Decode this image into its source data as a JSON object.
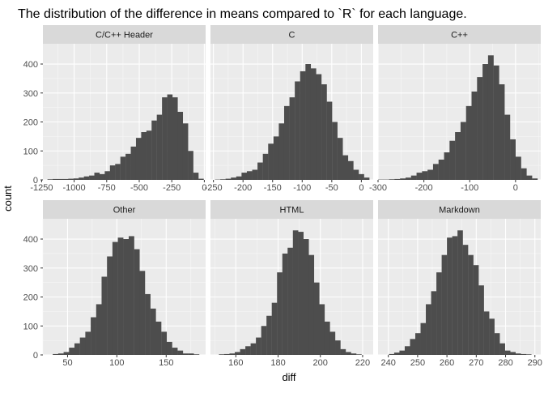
{
  "title": "The distribution of the difference in means compared to `R` for each language.",
  "xlabel": "diff",
  "ylabel": "count",
  "y_ticks": [
    0,
    100,
    200,
    300,
    400
  ],
  "colors": {
    "bar": "#4d4d4d",
    "panel_bg": "#ebebeb",
    "strip_bg": "#d9d9d9",
    "grid_major": "#ffffff",
    "text": "#000000",
    "tick_text": "#4d4d4d"
  },
  "chart_data": [
    {
      "type": "bar",
      "facet": "C/C++ Header",
      "xlim": [
        -1240,
        10
      ],
      "ylim": [
        0,
        470
      ],
      "x_ticks": [
        -1250,
        -1000,
        -750,
        -500,
        -250,
        0
      ],
      "x_tick_labels": [
        "-1250",
        "-1000",
        "-750",
        "-500",
        "-250",
        "0"
      ],
      "bin_width": 40,
      "x": [
        -1185,
        -1145,
        -1105,
        -1065,
        -1025,
        -985,
        -945,
        -905,
        -865,
        -825,
        -785,
        -745,
        -705,
        -665,
        -625,
        -585,
        -545,
        -505,
        -465,
        -425,
        -385,
        -345,
        -305,
        -265,
        -225,
        -185,
        -145,
        -105,
        -65,
        -25
      ],
      "values": [
        2,
        3,
        3,
        3,
        4,
        5,
        8,
        12,
        15,
        25,
        20,
        30,
        50,
        55,
        80,
        90,
        115,
        145,
        165,
        170,
        205,
        225,
        285,
        295,
        285,
        235,
        195,
        100,
        25,
        4
      ]
    },
    {
      "type": "bar",
      "facet": "C",
      "xlim": [
        -255,
        20
      ],
      "ylim": [
        0,
        470
      ],
      "x_ticks": [
        -250,
        -200,
        -150,
        -100,
        -50,
        0
      ],
      "x_tick_labels": [
        "-250",
        "-200",
        "-150",
        "-100",
        "-50",
        "0"
      ],
      "bin_width": 9,
      "x": [
        -243,
        -234,
        -225,
        -216,
        -207,
        -198,
        -189,
        -180,
        -171,
        -162,
        -153,
        -144,
        -135,
        -126,
        -117,
        -108,
        -99,
        -90,
        -81,
        -72,
        -63,
        -54,
        -45,
        -36,
        -27,
        -18,
        -9,
        0,
        9
      ],
      "values": [
        1,
        2,
        4,
        8,
        12,
        25,
        30,
        35,
        60,
        90,
        125,
        150,
        195,
        255,
        285,
        340,
        375,
        400,
        385,
        365,
        330,
        270,
        200,
        145,
        85,
        65,
        35,
        20,
        8
      ]
    },
    {
      "type": "bar",
      "facet": "C++",
      "xlim": [
        -300,
        55
      ],
      "ylim": [
        0,
        470
      ],
      "x_ticks": [
        -300,
        -200,
        -100,
        0
      ],
      "x_tick_labels": [
        "-300",
        "-200",
        "-100",
        "0"
      ],
      "bin_width": 12,
      "x": [
        -294,
        -282,
        -270,
        -258,
        -246,
        -234,
        -222,
        -210,
        -198,
        -186,
        -174,
        -162,
        -150,
        -138,
        -126,
        -114,
        -102,
        -90,
        -78,
        -66,
        -54,
        -42,
        -30,
        -18,
        -6,
        6,
        18,
        30,
        42
      ],
      "values": [
        1,
        1,
        2,
        3,
        5,
        8,
        15,
        25,
        30,
        35,
        55,
        70,
        95,
        135,
        165,
        200,
        255,
        305,
        355,
        400,
        430,
        395,
        330,
        225,
        140,
        80,
        40,
        15,
        5
      ]
    },
    {
      "type": "bar",
      "facet": "Other",
      "xlim": [
        25,
        190
      ],
      "ylim": [
        0,
        470
      ],
      "x_ticks": [
        50,
        100,
        150
      ],
      "x_tick_labels": [
        "50",
        "100",
        "150"
      ],
      "bin_width": 5.5,
      "x": [
        37.75,
        43.25,
        48.75,
        54.25,
        59.75,
        65.25,
        70.75,
        76.25,
        81.75,
        87.25,
        92.75,
        98.25,
        103.75,
        109.25,
        114.75,
        120.25,
        125.75,
        131.25,
        136.75,
        142.25,
        147.75,
        153.25,
        158.75,
        164.25,
        169.75,
        175.25,
        180.75
      ],
      "values": [
        3,
        5,
        10,
        25,
        40,
        60,
        80,
        130,
        175,
        270,
        340,
        390,
        405,
        400,
        410,
        365,
        290,
        210,
        160,
        115,
        80,
        45,
        25,
        15,
        5,
        5,
        2
      ]
    },
    {
      "type": "bar",
      "facet": "HTML",
      "xlim": [
        148,
        225
      ],
      "ylim": [
        0,
        470
      ],
      "x_ticks": [
        160,
        180,
        200,
        220
      ],
      "x_tick_labels": [
        "160",
        "180",
        "200",
        "220"
      ],
      "bin_width": 2.5,
      "x": [
        153.25,
        155.75,
        158.25,
        160.75,
        163.25,
        165.75,
        168.25,
        170.75,
        173.25,
        175.75,
        178.25,
        180.75,
        183.25,
        185.75,
        188.25,
        190.75,
        193.25,
        195.75,
        198.25,
        200.75,
        203.25,
        205.75,
        208.25,
        210.75,
        213.25,
        215.75,
        218.25
      ],
      "values": [
        2,
        3,
        5,
        10,
        20,
        30,
        40,
        60,
        100,
        135,
        180,
        285,
        350,
        370,
        430,
        425,
        400,
        345,
        250,
        175,
        115,
        80,
        50,
        20,
        10,
        5,
        2
      ]
    },
    {
      "type": "bar",
      "facet": "Markdown",
      "xlim": [
        236.5,
        292
      ],
      "ylim": [
        0,
        470
      ],
      "x_ticks": [
        240,
        250,
        260,
        270,
        280,
        290
      ],
      "x_tick_labels": [
        "240",
        "250",
        "260",
        "270",
        "280",
        "290"
      ],
      "bin_width": 1.8,
      "x": [
        241.1,
        242.9,
        244.7,
        246.5,
        248.3,
        250.1,
        251.9,
        253.7,
        255.5,
        257.3,
        259.1,
        260.9,
        262.7,
        264.5,
        266.3,
        268.1,
        269.9,
        271.7,
        273.5,
        275.3,
        277.1,
        278.9,
        280.7,
        282.5,
        284.3,
        286.1,
        287.9
      ],
      "values": [
        3,
        8,
        15,
        30,
        55,
        75,
        110,
        175,
        220,
        285,
        345,
        405,
        410,
        430,
        380,
        345,
        310,
        240,
        150,
        125,
        75,
        40,
        15,
        10,
        5,
        3,
        2
      ]
    }
  ]
}
